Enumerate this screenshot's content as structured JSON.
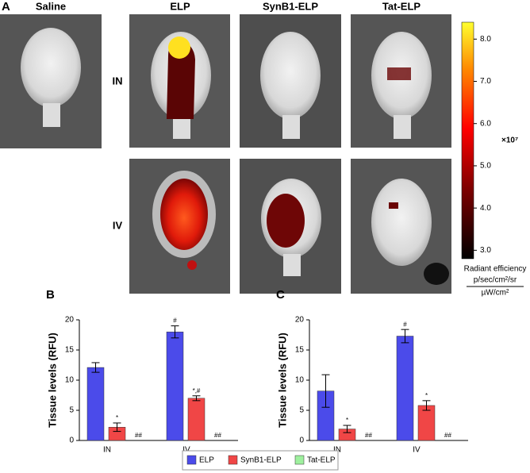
{
  "panel_a": {
    "label": "A",
    "columns": [
      "Saline",
      "ELP",
      "SynB1-ELP",
      "Tat-ELP"
    ],
    "rows": [
      "IN",
      "IV"
    ],
    "colorbar": {
      "lim": [
        2.8,
        8.4
      ],
      "ticks": [
        {
          "value": 3,
          "label": "3.0"
        },
        {
          "value": 4,
          "label": "4.0"
        },
        {
          "value": 5,
          "label": "5.0"
        },
        {
          "value": 6,
          "label": "6.0"
        },
        {
          "value": 7,
          "label": "7.0"
        },
        {
          "value": 8,
          "label": "8.0"
        }
      ],
      "multiplier": "×10⁷",
      "title": "Radiant efficiency",
      "unit_numerator": "p/sec/cm²/sr",
      "unit_denominator": "µW/cm²"
    }
  },
  "legend": [
    {
      "name": "ELP",
      "color": "#4b4bea"
    },
    {
      "name": "SynB1-ELP",
      "color": "#f04646"
    },
    {
      "name": "Tat-ELP",
      "color": "#9ef09e"
    }
  ],
  "chart_data": [
    {
      "type": "bar",
      "label": "B",
      "y_label": "Tissue levels (RFU)",
      "categories": [
        "IN",
        "IV"
      ],
      "ylim": [
        0,
        20
      ],
      "yticks": [
        0,
        5,
        10,
        15,
        20
      ],
      "series": [
        {
          "values": [
            12.1,
            18.0
          ],
          "errors": [
            0.8,
            1.0
          ],
          "annotations": [
            null,
            "#"
          ]
        },
        {
          "values": [
            2.2,
            7.0
          ],
          "errors": [
            0.7,
            0.4
          ],
          "annotations": [
            "*",
            "*,#"
          ]
        },
        {
          "values": [
            0,
            0
          ],
          "errors": [
            0,
            0
          ],
          "annotations": [
            "##",
            "##"
          ]
        }
      ]
    },
    {
      "type": "bar",
      "label": "C",
      "y_label": "Tissue levels (RFU)",
      "categories": [
        "IN",
        "IV"
      ],
      "ylim": [
        0,
        20
      ],
      "yticks": [
        0,
        5,
        10,
        15,
        20
      ],
      "series": [
        {
          "values": [
            8.2,
            17.3
          ],
          "errors": [
            2.7,
            1.1
          ],
          "annotations": [
            null,
            "#"
          ]
        },
        {
          "values": [
            1.9,
            5.8
          ],
          "errors": [
            0.6,
            0.8
          ],
          "annotations": [
            "*",
            "*"
          ]
        },
        {
          "values": [
            0,
            0
          ],
          "errors": [
            0,
            0
          ],
          "annotations": [
            "##",
            "##"
          ]
        }
      ]
    }
  ]
}
